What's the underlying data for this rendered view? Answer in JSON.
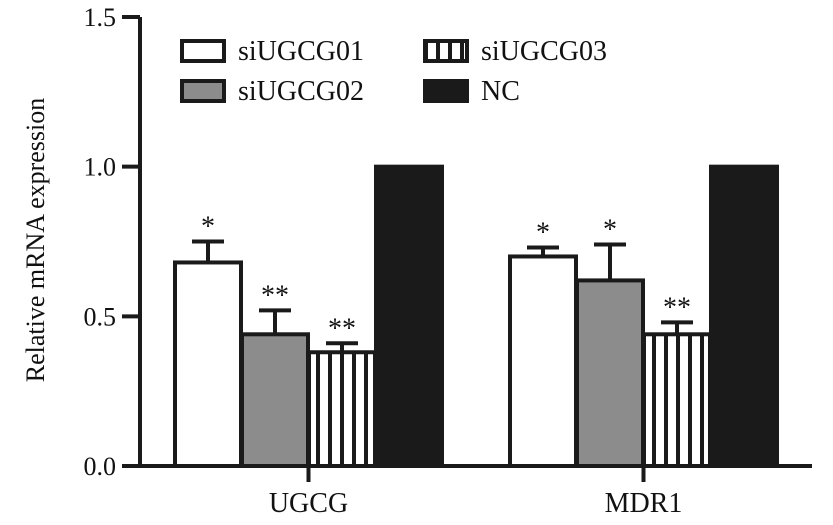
{
  "chart_data": {
    "type": "bar",
    "title": "",
    "xlabel": "",
    "ylabel": "Relative mRNA expression",
    "ylim": [
      0,
      1.5
    ],
    "yticks": [
      0.0,
      0.5,
      1.0,
      1.5
    ],
    "ytick_labels": [
      "0.0",
      "0.5",
      "1.0",
      "1.5"
    ],
    "grid": false,
    "legend_position": "top-left",
    "categories": [
      "UGCG",
      "MDR1"
    ],
    "series": [
      {
        "name": "siUGCG01",
        "fill": "white",
        "values": [
          0.68,
          0.7
        ],
        "errors": [
          0.07,
          0.03
        ],
        "significance": [
          "*",
          "*"
        ]
      },
      {
        "name": "siUGCG02",
        "fill": "gray",
        "values": [
          0.44,
          0.62
        ],
        "errors": [
          0.08,
          0.12
        ],
        "significance": [
          "**",
          "*"
        ]
      },
      {
        "name": "siUGCG03",
        "fill": "stripes",
        "values": [
          0.38,
          0.44
        ],
        "errors": [
          0.03,
          0.04
        ],
        "significance": [
          "**",
          "**"
        ]
      },
      {
        "name": "NC",
        "fill": "black",
        "values": [
          1.0,
          1.0
        ],
        "errors": [
          0,
          0
        ],
        "significance": [
          "",
          ""
        ]
      }
    ],
    "colors": {
      "gray": "#8c8c8c",
      "black": "#1a1a1a",
      "white": "#ffffff",
      "outline": "#1a1a1a"
    }
  }
}
